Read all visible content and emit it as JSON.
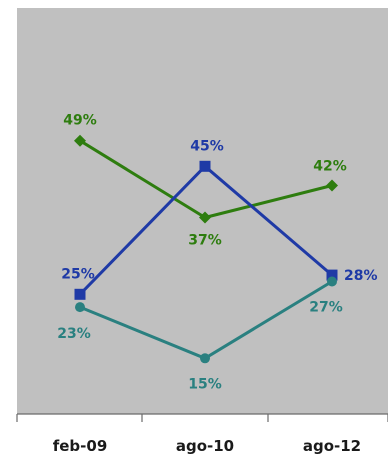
{
  "chart_data": {
    "type": "line",
    "categories": [
      "feb-09",
      "ago-10",
      "ago-12"
    ],
    "series": [
      {
        "values": [
          49,
          37,
          42
        ],
        "labels": [
          "49%",
          "37%",
          "42%"
        ],
        "color": "#2e7d0f",
        "marker": "diamond"
      },
      {
        "values": [
          25,
          45,
          28
        ],
        "labels": [
          "25%",
          "45%",
          "28%"
        ],
        "color": "#1f3aa6",
        "marker": "square"
      },
      {
        "values": [
          23,
          15,
          27
        ],
        "labels": [
          "23%",
          "15%",
          "27%"
        ],
        "color": "#2a8080",
        "marker": "circle"
      }
    ],
    "ylim": [
      0,
      60
    ],
    "grid": false,
    "plot_background": "#c0c0c0"
  }
}
